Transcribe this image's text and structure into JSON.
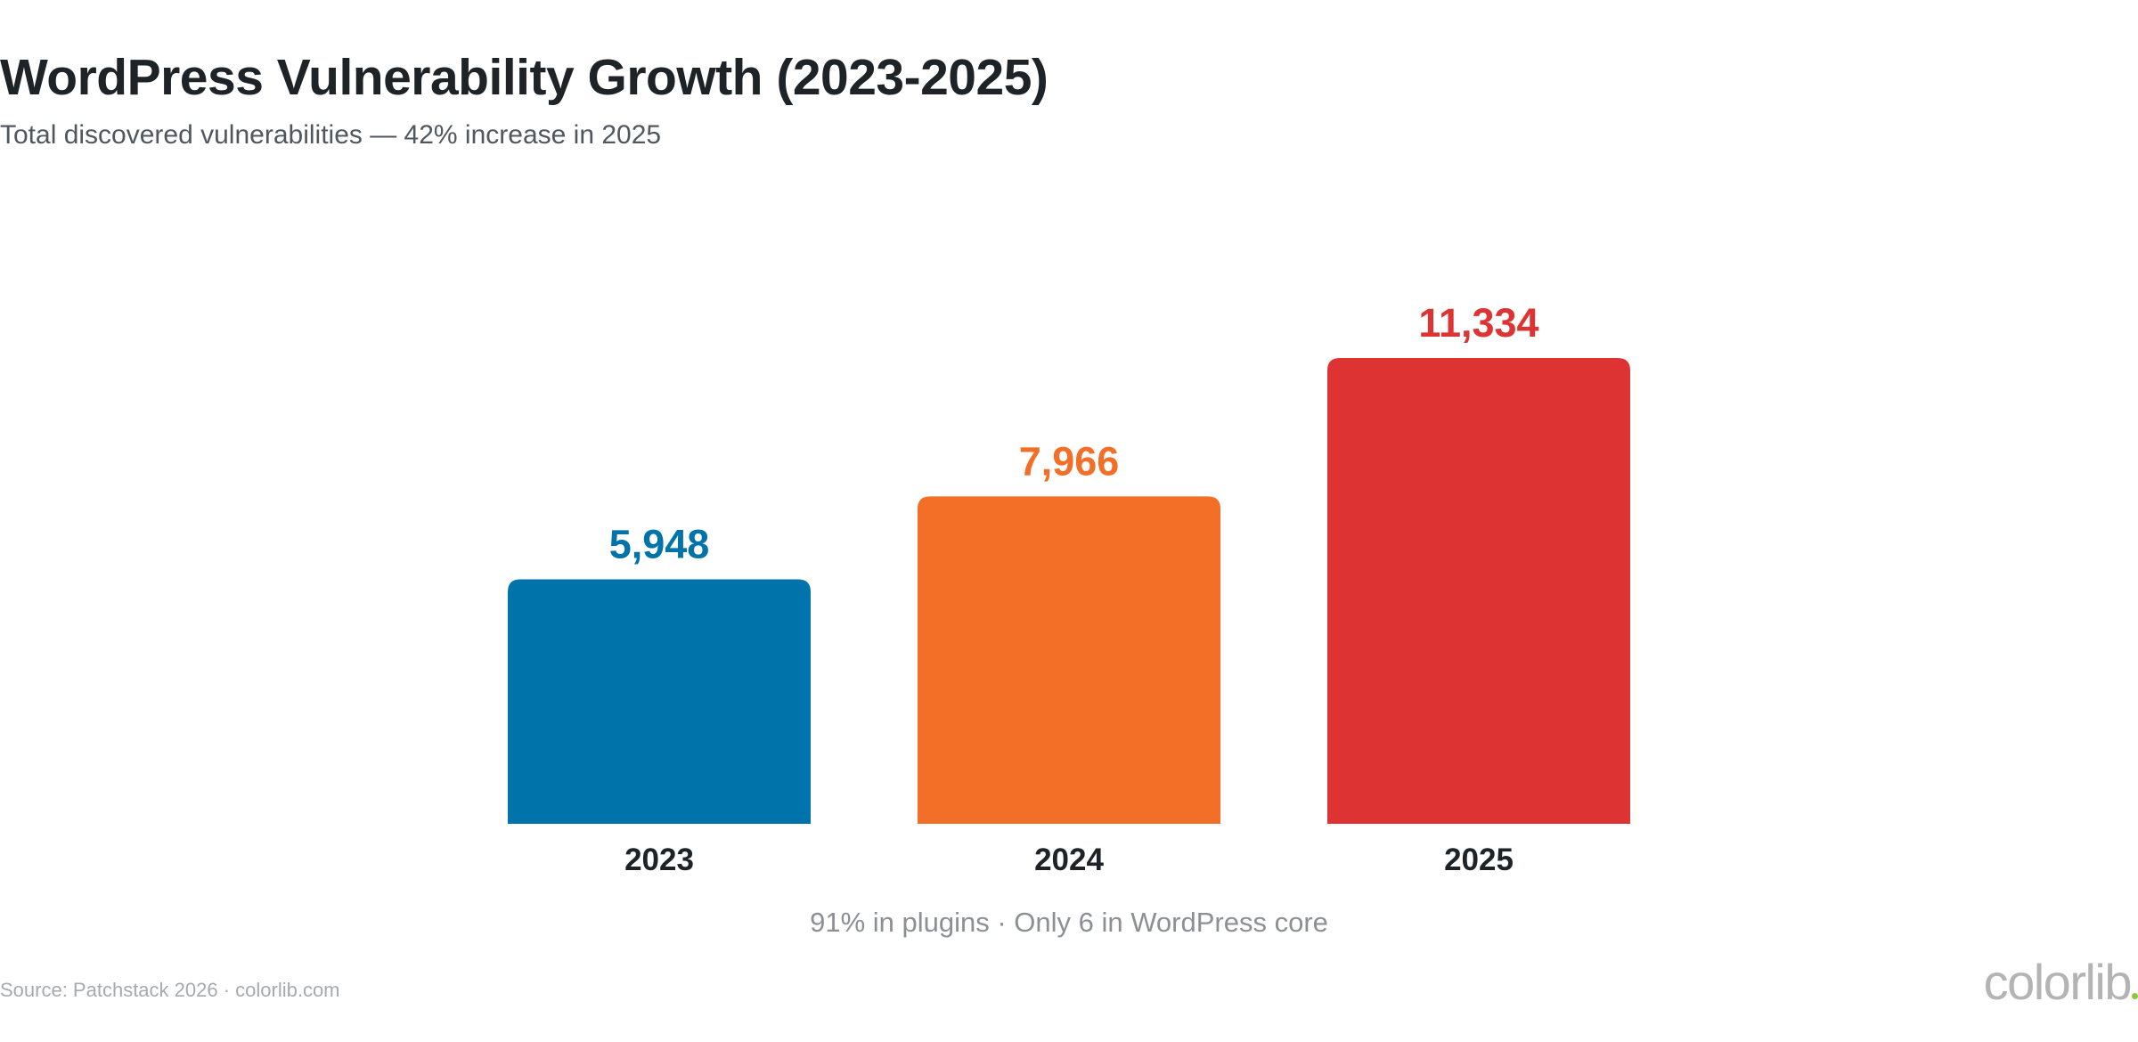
{
  "header": {
    "title": "WordPress Vulnerability Growth (2023-2025)",
    "subtitle": "Total discovered vulnerabilities — 42% increase in 2025"
  },
  "chart_data": {
    "type": "bar",
    "title": "WordPress Vulnerability Growth (2023-2025)",
    "subtitle": "Total discovered vulnerabilities — 42% increase in 2025",
    "categories": [
      "2023",
      "2024",
      "2025"
    ],
    "values": [
      5948,
      7966,
      11334
    ],
    "value_labels": [
      "5,948",
      "7,966",
      "11,334"
    ],
    "colors": [
      "#0073aa",
      "#f36f28",
      "#dd3333"
    ],
    "xlabel": "",
    "ylabel": "",
    "ylim": [
      0,
      11334
    ],
    "grid": false,
    "legend": "none"
  },
  "footer": {
    "note": "91% in plugins · Only 6 in WordPress core",
    "source": "Source: Patchstack 2026 · colorlib.com",
    "brand": "colorlib"
  },
  "colors": {
    "title": "#1d2327",
    "subtitle": "#50575e",
    "note": "#8c8f94",
    "source": "#a7aaad",
    "brand": "#b4b4b4",
    "brand_dot": "#8dc63f"
  }
}
